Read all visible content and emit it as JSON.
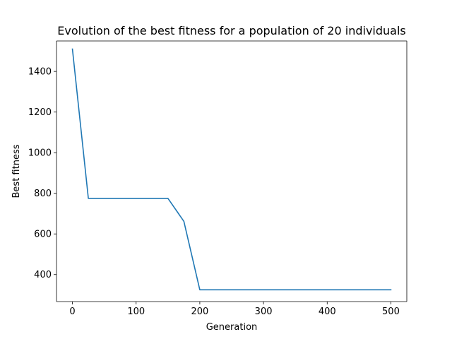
{
  "chart_data": {
    "type": "line",
    "title": "Evolution of the best fitness for a population of 20 individuals",
    "xlabel": "Generation",
    "ylabel": "Best fitness",
    "xlim": [
      -25,
      525
    ],
    "ylim": [
      267,
      1550
    ],
    "xticks": [
      0,
      100,
      200,
      300,
      400,
      500
    ],
    "yticks": [
      400,
      600,
      800,
      1000,
      1200,
      1400
    ],
    "grid": false,
    "series": [
      {
        "color": "#1f77b4",
        "x": [
          0,
          25,
          50,
          75,
          100,
          125,
          150,
          175,
          200,
          225,
          250,
          275,
          300,
          325,
          350,
          375,
          400,
          425,
          450,
          475,
          500
        ],
        "y": [
          1510,
          775,
          775,
          775,
          775,
          775,
          775,
          662,
          325,
          325,
          325,
          325,
          325,
          325,
          325,
          325,
          325,
          325,
          325,
          325,
          325
        ]
      }
    ]
  }
}
